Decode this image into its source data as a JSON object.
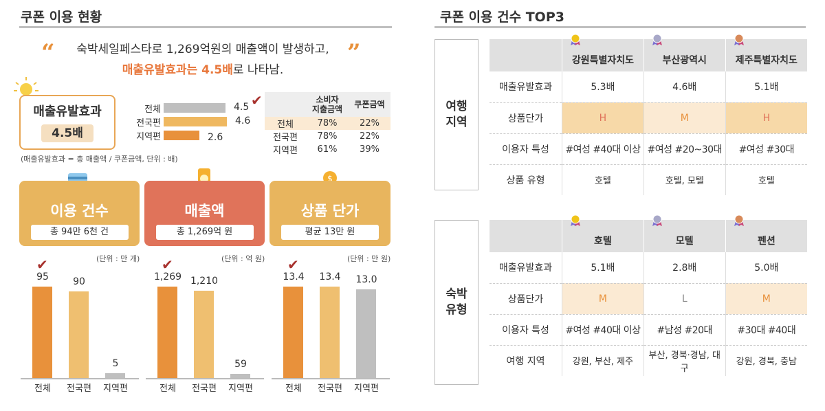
{
  "left": {
    "title": "쿠폰 이용 현황",
    "quote_open": "“",
    "quote_close": "”",
    "intro_line1": "숙박세일페스타로 1,269억원의 매출액이 발생하고,",
    "intro_line2_highlight": "매출유발효과는 4.5배",
    "intro_line2_rest": "로 나타남.",
    "effect_title": "매출유발효과",
    "effect_value": "4.5배",
    "formula_note": "(매출유발효과 = 총 매출액 / 쿠폰금액, 단위 : 배)",
    "table": {
      "headers": [
        "",
        "소비자\n지출금액",
        "쿠폰금액"
      ],
      "rows": [
        [
          "전체",
          "78%",
          "22%"
        ],
        [
          "전국편",
          "78%",
          "22%"
        ],
        [
          "지역편",
          "61%",
          "39%"
        ]
      ]
    },
    "cards": [
      {
        "title": "이용 건수",
        "value": "총 94만 6천 건",
        "unit": "(단위 : 만 개)",
        "color": "#e8b55e"
      },
      {
        "title": "매출액",
        "value": "총 1,269억 원",
        "unit": "(단위 : 억 원)",
        "color": "#e0735a"
      },
      {
        "title": "상품 단가",
        "value": "평균 13만 원",
        "unit": "(단위 : 만 원)",
        "color": "#e8b55e"
      }
    ]
  },
  "chart_data": [
    {
      "type": "bar",
      "orientation": "horizontal",
      "title": "",
      "categories": [
        "전체",
        "전국편",
        "지역편"
      ],
      "values": [
        4.5,
        4.6,
        2.6
      ],
      "labels": [
        "4.5",
        "4.6",
        "2.6"
      ],
      "colors": [
        "#bfbfbf",
        "#efb860",
        "#e8913b"
      ],
      "check": 0
    },
    {
      "type": "bar",
      "title": "이용 건수",
      "categories": [
        "전체",
        "전국편",
        "지역편"
      ],
      "values": [
        95,
        90,
        5
      ],
      "labels": [
        "95",
        "90",
        "5"
      ],
      "colors": [
        "#e8913b",
        "#efbf70",
        "#bfbfbf"
      ],
      "check": 0
    },
    {
      "type": "bar",
      "title": "매출액",
      "categories": [
        "전체",
        "전국편",
        "지역편"
      ],
      "values": [
        1269,
        1210,
        59
      ],
      "labels": [
        "1,269",
        "1,210",
        "59"
      ],
      "colors": [
        "#e8913b",
        "#efbf70",
        "#bfbfbf"
      ],
      "check": 0
    },
    {
      "type": "bar",
      "title": "상품 단가",
      "categories": [
        "전체",
        "전국편",
        "지역편"
      ],
      "values": [
        13.4,
        13.4,
        13.0
      ],
      "labels": [
        "13.4",
        "13.4",
        "13.0"
      ],
      "colors": [
        "#e8913b",
        "#efbf70",
        "#bfbfbf"
      ],
      "check": 0
    }
  ],
  "right": {
    "title": "쿠폰 이용 건수 TOP3",
    "travel": {
      "side": "여행\n지역",
      "headers": [
        "",
        "강원특별자치도",
        "부산광역시",
        "제주특별자치도"
      ],
      "rows": [
        [
          "매출유발효과",
          "5.3배",
          "4.6배",
          "5.1배"
        ],
        [
          "상품단가",
          "H",
          "M",
          "H"
        ],
        [
          "이용자 특성",
          "#여성 #40대 이상",
          "#여성 #20~30대",
          "#여성 #30대"
        ],
        [
          "상품 유형",
          "호텔",
          "호텔, 모텔",
          "호텔"
        ]
      ],
      "grade_colors": [
        "#f7d9a8",
        "#fbead3",
        "#f7d9a8"
      ]
    },
    "lodging": {
      "side": "숙박\n유형",
      "headers": [
        "",
        "호텔",
        "모텔",
        "펜션"
      ],
      "rows": [
        [
          "매출유발효과",
          "5.1배",
          "2.8배",
          "5.0배"
        ],
        [
          "상품단가",
          "M",
          "L",
          "M"
        ],
        [
          "이용자 특성",
          "#여성 #40대 이상",
          "#남성 #20대",
          "#30대 #40대"
        ],
        [
          "여행 지역",
          "강원, 부산, 제주",
          "부산, 경북·경남, 대구",
          "강원, 경북, 충남"
        ]
      ],
      "grade_colors": [
        "#fbead3",
        "#ffffff",
        "#fbead3"
      ]
    },
    "medal_colors": [
      "#f0c419",
      "#a8a8c8",
      "#d88a5a"
    ]
  }
}
